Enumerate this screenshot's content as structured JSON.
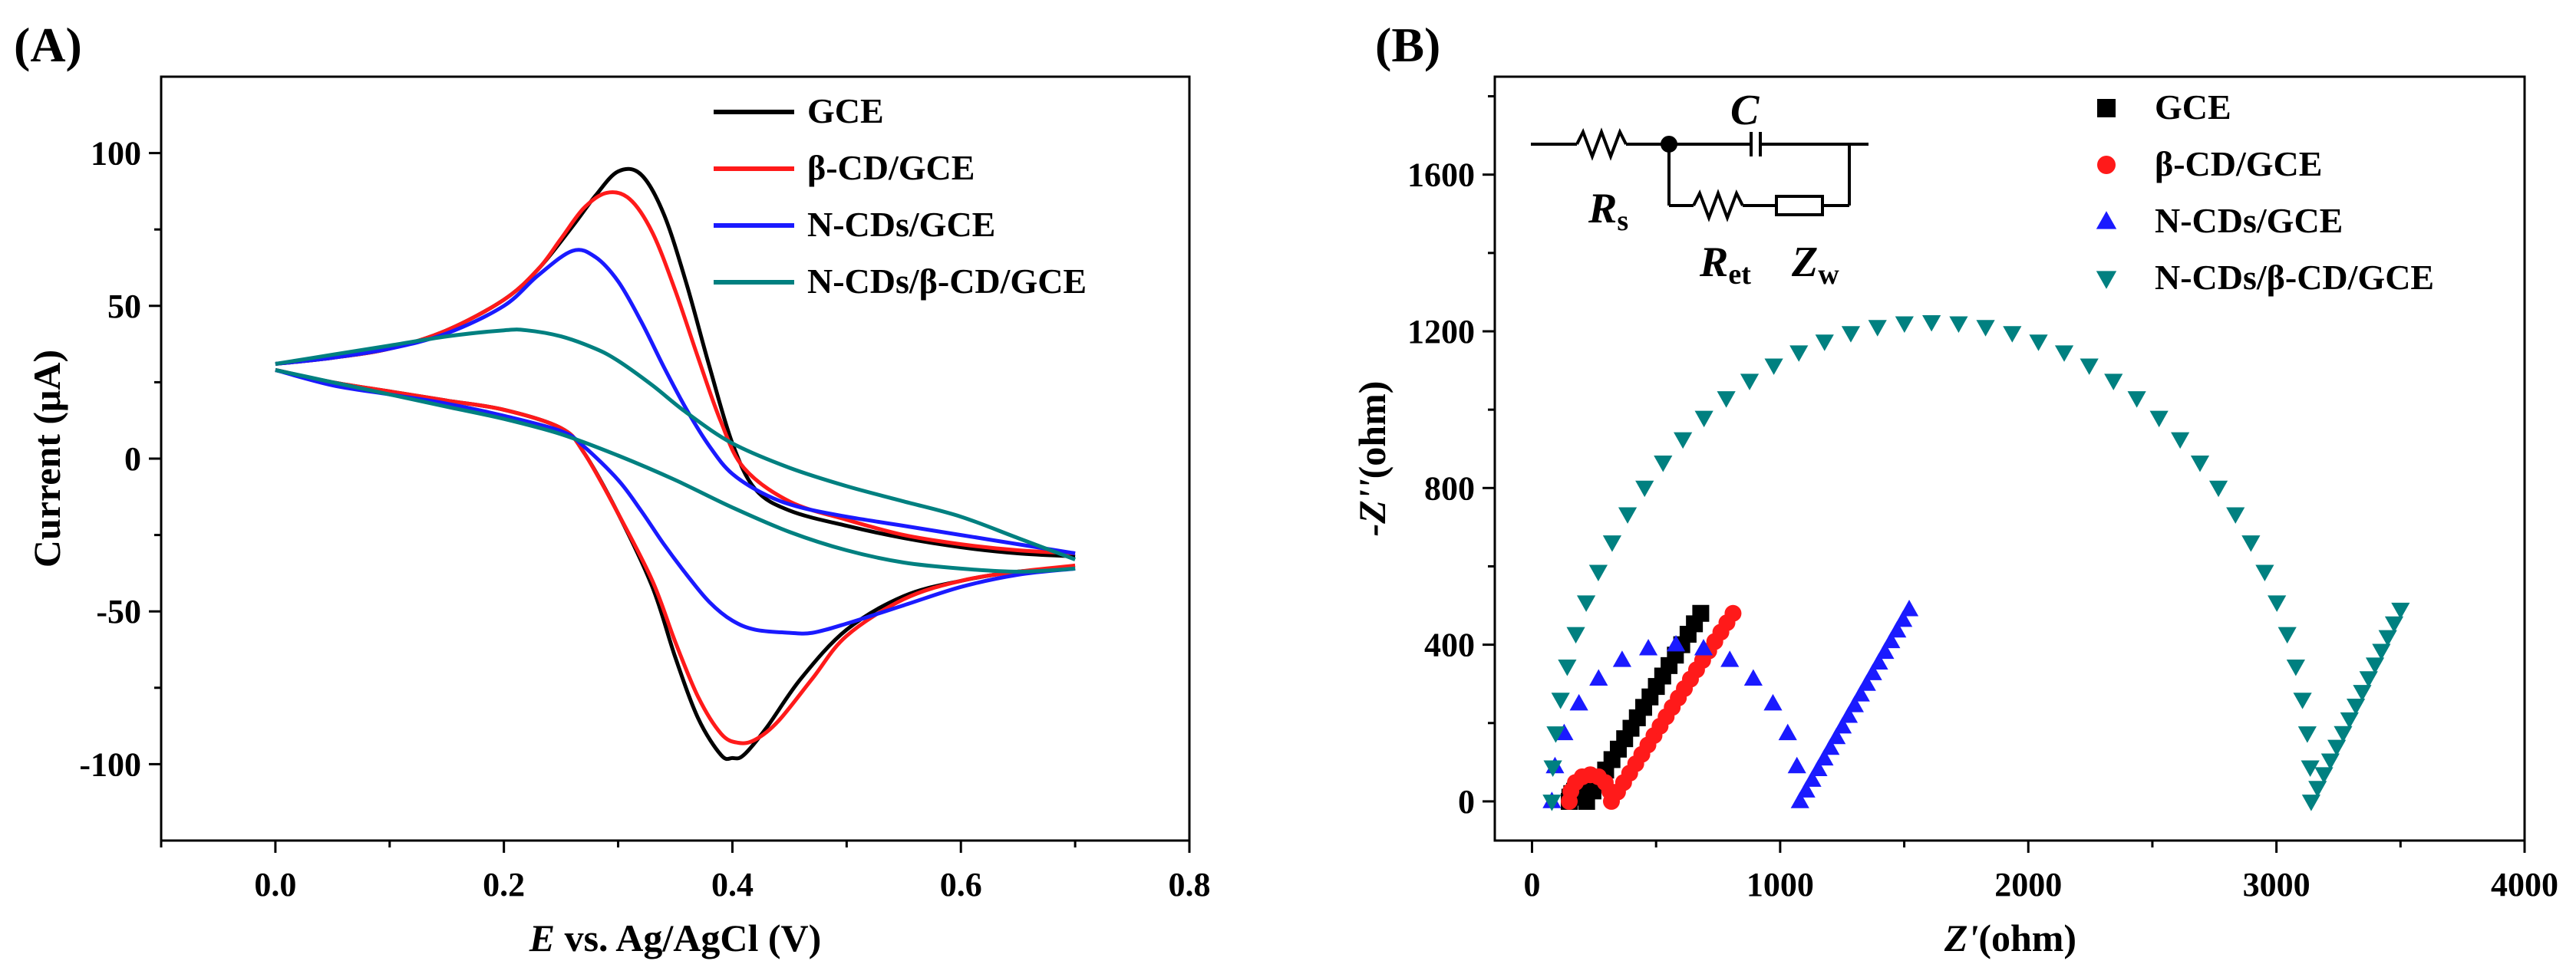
{
  "panels": {
    "a": {
      "label": "(A)"
    },
    "b": {
      "label": "(B)"
    }
  },
  "colors": {
    "gce": "#000000",
    "bcd": "#ff1a1a",
    "ncd": "#1a1aff",
    "ncdbcd": "#008080"
  },
  "chart_data": [
    {
      "type": "line",
      "title": "(A)",
      "xlabel": "E vs. Ag/AgCl (V)",
      "xlabel_italic_part": "E",
      "xlabel_rest": " vs. Ag/AgCl (V)",
      "ylabel": "Current (μA)",
      "xlim": [
        -0.1,
        0.8
      ],
      "ylim": [
        -125,
        125
      ],
      "xticks": [
        0.0,
        0.2,
        0.4,
        0.6,
        0.8
      ],
      "xtick_labels": [
        "0.0",
        "0.2",
        "0.4",
        "0.6",
        "0.8"
      ],
      "yticks": [
        -100,
        -50,
        0,
        50,
        100
      ],
      "ytick_labels": [
        "-100",
        "-50",
        "0",
        "50",
        "100"
      ],
      "legend_position": "top-right",
      "series": [
        {
          "name": "GCE",
          "color_key": "gce",
          "forward": {
            "x": [
              0.0,
              0.05,
              0.1,
              0.15,
              0.2,
              0.23,
              0.26,
              0.28,
              0.3,
              0.32,
              0.34,
              0.36,
              0.38,
              0.4,
              0.42,
              0.45,
              0.5,
              0.55,
              0.6,
              0.65,
              0.7
            ],
            "y": [
              31,
              33,
              36,
              42,
              52,
              62,
              76,
              86,
              94,
              93,
              80,
              57,
              30,
              5,
              -10,
              -17,
              -22,
              -26,
              -29,
              -31,
              -32
            ]
          },
          "reverse": {
            "x": [
              0.7,
              0.65,
              0.6,
              0.55,
              0.5,
              0.46,
              0.43,
              0.41,
              0.4,
              0.39,
              0.37,
              0.35,
              0.33,
              0.3,
              0.27,
              0.25,
              0.2,
              0.15,
              0.1,
              0.05,
              0.0
            ],
            "y": [
              -36,
              -37,
              -40,
              -45,
              -56,
              -72,
              -88,
              -97,
              -98,
              -97,
              -85,
              -65,
              -42,
              -18,
              2,
              10,
              16,
              19,
              22,
              25,
              29
            ]
          }
        },
        {
          "name": "β-CD/GCE",
          "color_key": "bcd",
          "forward": {
            "x": [
              0.0,
              0.05,
              0.1,
              0.15,
              0.2,
              0.23,
              0.25,
              0.27,
              0.29,
              0.31,
              0.33,
              0.35,
              0.37,
              0.39,
              0.41,
              0.45,
              0.5,
              0.55,
              0.6,
              0.65,
              0.7
            ],
            "y": [
              31,
              33,
              36,
              42,
              52,
              62,
              72,
              82,
              87,
              85,
              74,
              55,
              33,
              12,
              -3,
              -14,
              -20,
              -25,
              -28,
              -30,
              -31
            ]
          },
          "reverse": {
            "x": [
              0.7,
              0.65,
              0.6,
              0.55,
              0.5,
              0.47,
              0.44,
              0.42,
              0.405,
              0.39,
              0.37,
              0.35,
              0.33,
              0.3,
              0.27,
              0.25,
              0.2,
              0.15,
              0.1,
              0.05,
              0.0
            ],
            "y": [
              -35,
              -37,
              -40,
              -46,
              -58,
              -72,
              -86,
              -92,
              -93,
              -90,
              -78,
              -60,
              -40,
              -18,
              2,
              10,
              16,
              19,
              22,
              25,
              29
            ]
          }
        },
        {
          "name": "N-CDs/GCE",
          "color_key": "ncd",
          "forward": {
            "x": [
              0.0,
              0.05,
              0.1,
              0.15,
              0.2,
              0.23,
              0.26,
              0.28,
              0.3,
              0.32,
              0.34,
              0.36,
              0.38,
              0.4,
              0.43,
              0.46,
              0.5,
              0.55,
              0.6,
              0.65,
              0.7
            ],
            "y": [
              31,
              33,
              36,
              41,
              50,
              60,
              68,
              66,
              58,
              45,
              30,
              16,
              4,
              -5,
              -12,
              -16,
              -19,
              -22,
              -25,
              -28,
              -31
            ]
          },
          "reverse": {
            "x": [
              0.7,
              0.65,
              0.6,
              0.55,
              0.5,
              0.47,
              0.45,
              0.42,
              0.4,
              0.38,
              0.36,
              0.34,
              0.32,
              0.3,
              0.27,
              0.25,
              0.2,
              0.15,
              0.1,
              0.05,
              0.0
            ],
            "y": [
              -36,
              -38,
              -42,
              -48,
              -54,
              -57,
              -57,
              -56,
              -53,
              -47,
              -38,
              -28,
              -17,
              -7,
              4,
              9,
              14,
              18,
              21,
              24,
              29
            ]
          }
        },
        {
          "name": "N-CDs/β-CD/GCE",
          "color_key": "ncdbcd",
          "forward": {
            "x": [
              0.0,
              0.05,
              0.1,
              0.15,
              0.2,
              0.22,
              0.25,
              0.28,
              0.3,
              0.33,
              0.36,
              0.4,
              0.45,
              0.5,
              0.55,
              0.6,
              0.65,
              0.7
            ],
            "y": [
              31,
              34,
              37,
              40,
              42,
              42,
              40,
              36,
              32,
              24,
              15,
              5,
              -3,
              -9,
              -14,
              -19,
              -26,
              -33
            ]
          },
          "reverse": {
            "x": [
              0.7,
              0.65,
              0.6,
              0.55,
              0.5,
              0.45,
              0.4,
              0.35,
              0.3,
              0.25,
              0.2,
              0.15,
              0.1,
              0.05,
              0.0
            ],
            "y": [
              -36,
              -37,
              -36,
              -34,
              -30,
              -24,
              -16,
              -7,
              1,
              8,
              13,
              17,
              21,
              25,
              29
            ]
          }
        }
      ]
    },
    {
      "type": "scatter",
      "title": "(B)",
      "xlabel": "Z'(ohm)",
      "xlabel_italic_part": "Z'",
      "xlabel_rest": "(ohm)",
      "ylabel": "-Z''(ohm)",
      "ylabel_italic_part": "-Z''",
      "ylabel_rest": "(ohm)",
      "xlim": [
        -150,
        4000
      ],
      "ylim": [
        -100,
        1850
      ],
      "xticks": [
        0,
        1000,
        2000,
        3000,
        4000
      ],
      "xtick_labels": [
        "0",
        "1000",
        "2000",
        "3000",
        "4000"
      ],
      "yticks": [
        0,
        400,
        800,
        1200,
        1600
      ],
      "ytick_labels": [
        "0",
        "400",
        "800",
        "1200",
        "1600"
      ],
      "legend_position": "top-right",
      "inset": {
        "C": "C",
        "Rs_main": "R",
        "Rs_sub": "s",
        "Ret_main": "R",
        "Ret_sub": "et",
        "Zw_main": "Z",
        "Zw_sub": "w"
      },
      "series": [
        {
          "name": "GCE",
          "marker": "square",
          "color_key": "gce",
          "semicircle": {
            "R0": 150,
            "Rct": 70
          },
          "tail_to": [
            680,
            480
          ]
        },
        {
          "name": "β-CD/GCE",
          "marker": "circle",
          "color_key": "bcd",
          "semicircle": {
            "R0": 150,
            "Rct": 170
          },
          "tail_to": [
            810,
            480
          ]
        },
        {
          "name": "N-CDs/GCE",
          "marker": "triangle-up",
          "color_key": "ncd",
          "semicircle": {
            "R0": 80,
            "Rct": 1000
          },
          "tail_to": [
            1520,
            490
          ]
        },
        {
          "name": "N-CDs/β-CD/GCE",
          "marker": "triangle-down",
          "color_key": "ncdbcd",
          "semicircle": {
            "R0": 80,
            "Rct": 3060
          },
          "tail_to": [
            3500,
            490
          ]
        }
      ]
    }
  ]
}
